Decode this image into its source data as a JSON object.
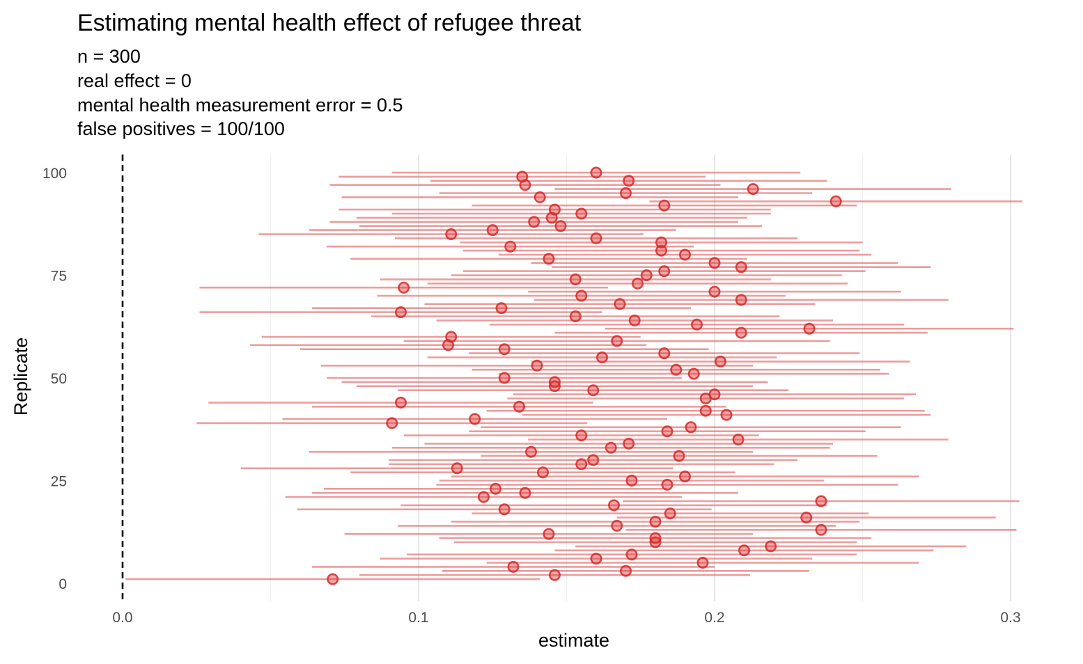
{
  "chart_data": {
    "type": "forest",
    "title": "Estimating mental health effect of refugee threat",
    "subtitle_lines": [
      "n = 300",
      "real effect = 0",
      "mental health measurement error = 0.5",
      "false positives = 100/100"
    ],
    "xlabel": "estimate",
    "ylabel": "Replicate",
    "xlim": [
      0,
      0.3
    ],
    "ylim": [
      0,
      100
    ],
    "x_ticks": [
      0,
      0.1,
      0.2,
      0.3
    ],
    "x_tick_labels": [
      "0.0",
      "0.1",
      "0.2",
      "0.3"
    ],
    "y_ticks": [
      0,
      25,
      50,
      75,
      100
    ],
    "y_tick_labels": [
      "0",
      "25",
      "50",
      "75",
      "100"
    ],
    "reference_line_x": 0,
    "grid": true,
    "legend": "none",
    "color": "#e03b3b",
    "replicates": [
      1,
      2,
      3,
      4,
      5,
      6,
      7,
      8,
      9,
      10,
      11,
      12,
      13,
      14,
      15,
      16,
      17,
      18,
      19,
      20,
      21,
      22,
      23,
      24,
      25,
      26,
      27,
      28,
      29,
      30,
      31,
      32,
      33,
      34,
      35,
      36,
      37,
      38,
      39,
      40,
      41,
      42,
      43,
      44,
      45,
      46,
      47,
      48,
      49,
      50,
      51,
      52,
      53,
      54,
      55,
      56,
      57,
      58,
      59,
      60,
      61,
      62,
      63,
      64,
      65,
      66,
      67,
      68,
      69,
      70,
      71,
      72,
      73,
      74,
      75,
      76,
      77,
      78,
      79,
      80,
      81,
      82,
      83,
      84,
      85,
      86,
      87,
      88,
      89,
      90,
      91,
      92,
      93,
      94,
      95,
      96,
      97,
      98,
      99,
      100
    ],
    "estimates": [
      0.071,
      0.146,
      0.17,
      0.132,
      0.196,
      0.16,
      0.172,
      0.21,
      0.219,
      0.18,
      0.18,
      0.144,
      0.236,
      0.167,
      0.18,
      0.231,
      0.185,
      0.129,
      0.166,
      0.236,
      0.122,
      0.136,
      0.126,
      0.184,
      0.172,
      0.19,
      0.142,
      0.113,
      0.155,
      0.159,
      0.188,
      0.138,
      0.165,
      0.171,
      0.208,
      0.155,
      0.184,
      0.192,
      0.091,
      0.119,
      0.204,
      0.197,
      0.134,
      0.094,
      0.197,
      0.2,
      0.159,
      0.146,
      0.146,
      0.129,
      0.193,
      0.187,
      0.14,
      0.202,
      0.162,
      0.183,
      0.129,
      0.11,
      0.167,
      0.111,
      0.209,
      0.232,
      0.194,
      0.173,
      0.153,
      0.094,
      0.128,
      0.168,
      0.209,
      0.155,
      0.2,
      0.095,
      0.174,
      0.153,
      0.177,
      0.183,
      0.209,
      0.2,
      0.144,
      0.19,
      0.182,
      0.131,
      0.182,
      0.16,
      0.111,
      0.125,
      0.148,
      0.139,
      0.145,
      0.155,
      0.146,
      0.183,
      0.241,
      0.141,
      0.17,
      0.213,
      0.136,
      0.171,
      0.135,
      0.16
    ],
    "lower": [
      0.001,
      0.08,
      0.108,
      0.064,
      0.123,
      0.087,
      0.096,
      0.146,
      0.153,
      0.112,
      0.107,
      0.075,
      0.17,
      0.093,
      0.111,
      0.167,
      0.118,
      0.059,
      0.094,
      0.169,
      0.055,
      0.064,
      0.068,
      0.106,
      0.107,
      0.111,
      0.077,
      0.04,
      0.09,
      0.09,
      0.121,
      0.063,
      0.091,
      0.102,
      0.137,
      0.095,
      0.117,
      0.121,
      0.025,
      0.054,
      0.135,
      0.123,
      0.064,
      0.029,
      0.13,
      0.132,
      0.093,
      0.079,
      0.074,
      0.069,
      0.127,
      0.118,
      0.067,
      0.138,
      0.103,
      0.117,
      0.06,
      0.043,
      0.095,
      0.047,
      0.146,
      0.163,
      0.124,
      0.106,
      0.084,
      0.026,
      0.064,
      0.102,
      0.139,
      0.086,
      0.137,
      0.026,
      0.103,
      0.087,
      0.111,
      0.115,
      0.145,
      0.138,
      0.077,
      0.127,
      0.115,
      0.069,
      0.114,
      0.092,
      0.046,
      0.063,
      0.08,
      0.07,
      0.079,
      0.091,
      0.073,
      0.118,
      0.178,
      0.074,
      0.107,
      0.146,
      0.07,
      0.104,
      0.073,
      0.091
    ],
    "upper": [
      0.141,
      0.212,
      0.232,
      0.2,
      0.269,
      0.233,
      0.248,
      0.274,
      0.285,
      0.248,
      0.253,
      0.213,
      0.302,
      0.241,
      0.249,
      0.295,
      0.252,
      0.199,
      0.238,
      0.303,
      0.189,
      0.208,
      0.184,
      0.262,
      0.237,
      0.269,
      0.207,
      0.186,
      0.22,
      0.228,
      0.255,
      0.213,
      0.239,
      0.24,
      0.279,
      0.215,
      0.251,
      0.263,
      0.157,
      0.184,
      0.273,
      0.271,
      0.204,
      0.159,
      0.264,
      0.268,
      0.225,
      0.213,
      0.218,
      0.189,
      0.259,
      0.256,
      0.213,
      0.266,
      0.221,
      0.249,
      0.198,
      0.177,
      0.239,
      0.175,
      0.272,
      0.301,
      0.264,
      0.24,
      0.222,
      0.162,
      0.192,
      0.234,
      0.279,
      0.224,
      0.263,
      0.164,
      0.245,
      0.219,
      0.243,
      0.251,
      0.273,
      0.262,
      0.211,
      0.253,
      0.249,
      0.193,
      0.25,
      0.228,
      0.176,
      0.187,
      0.216,
      0.208,
      0.211,
      0.219,
      0.219,
      0.248,
      0.304,
      0.208,
      0.233,
      0.28,
      0.202,
      0.238,
      0.197,
      0.229
    ]
  }
}
